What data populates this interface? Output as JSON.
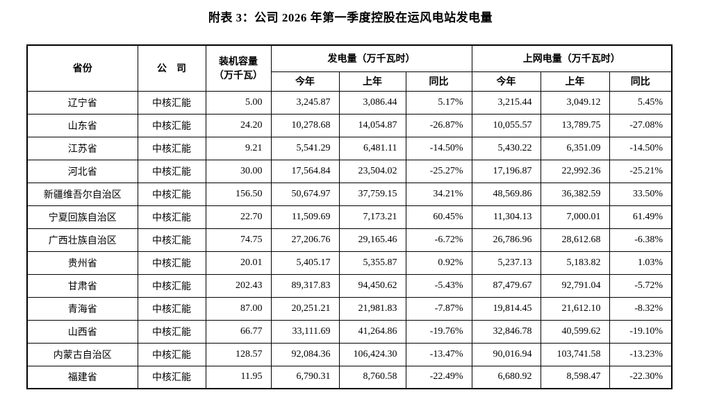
{
  "title": "附表 3：公司 2026 年第一季度控股在运风电站发电量",
  "colors": {
    "background": "#ffffff",
    "text": "#000000",
    "border": "#000000"
  },
  "table": {
    "headers": {
      "province": "省份",
      "company": "公　司",
      "capacity": "装机容量\n（万千瓦）",
      "generation_group": "发电量（万千瓦时）",
      "ongrid_group": "上网电量（万千瓦时）",
      "this_year": "今年",
      "last_year": "上年",
      "yoy": "同比"
    },
    "rows": [
      {
        "province": "辽宁省",
        "company": "中核汇能",
        "capacity": "5.00",
        "gen_this": "3,245.87",
        "gen_last": "3,086.44",
        "gen_yoy": "5.17%",
        "grid_this": "3,215.44",
        "grid_last": "3,049.12",
        "grid_yoy": "5.45%"
      },
      {
        "province": "山东省",
        "company": "中核汇能",
        "capacity": "24.20",
        "gen_this": "10,278.68",
        "gen_last": "14,054.87",
        "gen_yoy": "-26.87%",
        "grid_this": "10,055.57",
        "grid_last": "13,789.75",
        "grid_yoy": "-27.08%"
      },
      {
        "province": "江苏省",
        "company": "中核汇能",
        "capacity": "9.21",
        "gen_this": "5,541.29",
        "gen_last": "6,481.11",
        "gen_yoy": "-14.50%",
        "grid_this": "5,430.22",
        "grid_last": "6,351.09",
        "grid_yoy": "-14.50%"
      },
      {
        "province": "河北省",
        "company": "中核汇能",
        "capacity": "30.00",
        "gen_this": "17,564.84",
        "gen_last": "23,504.02",
        "gen_yoy": "-25.27%",
        "grid_this": "17,196.87",
        "grid_last": "22,992.36",
        "grid_yoy": "-25.21%"
      },
      {
        "province": "新疆维吾尔自治区",
        "company": "中核汇能",
        "capacity": "156.50",
        "gen_this": "50,674.97",
        "gen_last": "37,759.15",
        "gen_yoy": "34.21%",
        "grid_this": "48,569.86",
        "grid_last": "36,382.59",
        "grid_yoy": "33.50%"
      },
      {
        "province": "宁夏回族自治区",
        "company": "中核汇能",
        "capacity": "22.70",
        "gen_this": "11,509.69",
        "gen_last": "7,173.21",
        "gen_yoy": "60.45%",
        "grid_this": "11,304.13",
        "grid_last": "7,000.01",
        "grid_yoy": "61.49%"
      },
      {
        "province": "广西壮族自治区",
        "company": "中核汇能",
        "capacity": "74.75",
        "gen_this": "27,206.76",
        "gen_last": "29,165.46",
        "gen_yoy": "-6.72%",
        "grid_this": "26,786.96",
        "grid_last": "28,612.68",
        "grid_yoy": "-6.38%"
      },
      {
        "province": "贵州省",
        "company": "中核汇能",
        "capacity": "20.01",
        "gen_this": "5,405.17",
        "gen_last": "5,355.87",
        "gen_yoy": "0.92%",
        "grid_this": "5,237.13",
        "grid_last": "5,183.82",
        "grid_yoy": "1.03%"
      },
      {
        "province": "甘肃省",
        "company": "中核汇能",
        "capacity": "202.43",
        "gen_this": "89,317.83",
        "gen_last": "94,450.62",
        "gen_yoy": "-5.43%",
        "grid_this": "87,479.67",
        "grid_last": "92,791.04",
        "grid_yoy": "-5.72%"
      },
      {
        "province": "青海省",
        "company": "中核汇能",
        "capacity": "87.00",
        "gen_this": "20,251.21",
        "gen_last": "21,981.83",
        "gen_yoy": "-7.87%",
        "grid_this": "19,814.45",
        "grid_last": "21,612.10",
        "grid_yoy": "-8.32%"
      },
      {
        "province": "山西省",
        "company": "中核汇能",
        "capacity": "66.77",
        "gen_this": "33,111.69",
        "gen_last": "41,264.86",
        "gen_yoy": "-19.76%",
        "grid_this": "32,846.78",
        "grid_last": "40,599.62",
        "grid_yoy": "-19.10%"
      },
      {
        "province": "内蒙古自治区",
        "company": "中核汇能",
        "capacity": "128.57",
        "gen_this": "92,084.36",
        "gen_last": "106,424.30",
        "gen_yoy": "-13.47%",
        "grid_this": "90,016.94",
        "grid_last": "103,741.58",
        "grid_yoy": "-13.23%"
      },
      {
        "province": "福建省",
        "company": "中核汇能",
        "capacity": "11.95",
        "gen_this": "6,790.31",
        "gen_last": "8,760.58",
        "gen_yoy": "-22.49%",
        "grid_this": "6,680.92",
        "grid_last": "8,598.47",
        "grid_yoy": "-22.30%"
      }
    ]
  }
}
